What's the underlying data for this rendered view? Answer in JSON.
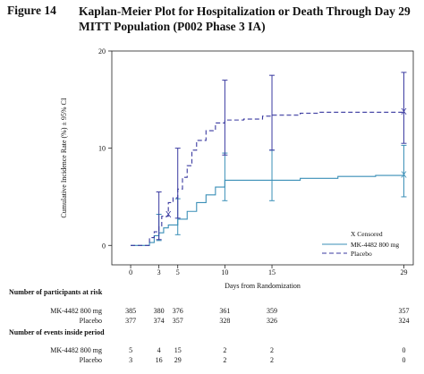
{
  "figure_label": "Figure 14",
  "figure_title": "Kaplan-Meier Plot for Hospitalization or Death Through Day 29 MITT Population (P002 Phase 3 IA)",
  "chart_data": {
    "type": "line",
    "subtype": "kaplan-meier step",
    "xlabel": "Days from Randomization",
    "ylabel": "Cumulative Incidence Rate (%) ± 95% CI",
    "xlim": [
      -2,
      30
    ],
    "ylim": [
      -2,
      20
    ],
    "x_ticks": [
      0,
      3,
      5,
      10,
      15,
      29
    ],
    "y_ticks": [
      0,
      10,
      20
    ],
    "grid": false,
    "legend_position": "bottom-right",
    "legend_title": "X Censored",
    "censor_symbol": "X",
    "colors": {
      "mk": "#3a8fb7",
      "placebo": "#3a3aa0"
    },
    "series": [
      {
        "name": "MK-4482 800 mg",
        "key": "mk",
        "line_style": "solid",
        "steps": [
          [
            0,
            0
          ],
          [
            2,
            0.3
          ],
          [
            2.5,
            1.0
          ],
          [
            3,
            1.3
          ],
          [
            3.5,
            1.8
          ],
          [
            4,
            2.1
          ],
          [
            5,
            2.7
          ],
          [
            6,
            3.5
          ],
          [
            7,
            4.4
          ],
          [
            8,
            5.2
          ],
          [
            9,
            6.0
          ],
          [
            10,
            6.7
          ],
          [
            15,
            6.7
          ],
          [
            18,
            6.9
          ],
          [
            22,
            7.1
          ],
          [
            26,
            7.2
          ],
          [
            29,
            7.3
          ]
        ],
        "ci": [
          {
            "x": 3,
            "low": 0.5,
            "high": 3.2
          },
          {
            "x": 5,
            "low": 1.1,
            "high": 4.8
          },
          {
            "x": 10,
            "low": 4.6,
            "high": 9.5
          },
          {
            "x": 15,
            "low": 4.6,
            "high": 9.8
          },
          {
            "x": 29,
            "low": 5.0,
            "high": 10.3
          }
        ],
        "censor": [
          {
            "x": 29,
            "y": 7.3
          }
        ]
      },
      {
        "name": "Placebo",
        "key": "placebo",
        "line_style": "dashed",
        "steps": [
          [
            0,
            0
          ],
          [
            2,
            0.8
          ],
          [
            2.5,
            1.4
          ],
          [
            3,
            2.0
          ],
          [
            3.3,
            3.0
          ],
          [
            4,
            4.4
          ],
          [
            4.5,
            4.9
          ],
          [
            5,
            5.8
          ],
          [
            5.5,
            7.0
          ],
          [
            6,
            8.2
          ],
          [
            6.5,
            9.8
          ],
          [
            7,
            10.8
          ],
          [
            8,
            11.8
          ],
          [
            9,
            12.6
          ],
          [
            10,
            12.9
          ],
          [
            12,
            13.0
          ],
          [
            14,
            13.3
          ],
          [
            15,
            13.4
          ],
          [
            18,
            13.6
          ],
          [
            20,
            13.7
          ],
          [
            29,
            13.8
          ]
        ],
        "ci": [
          {
            "x": 3,
            "low": 0.6,
            "high": 5.5
          },
          {
            "x": 5,
            "low": 2.8,
            "high": 10.0
          },
          {
            "x": 10,
            "low": 9.3,
            "high": 17.0
          },
          {
            "x": 15,
            "low": 9.8,
            "high": 17.5
          },
          {
            "x": 29,
            "low": 10.5,
            "high": 17.8
          }
        ],
        "censor": [
          {
            "x": 4,
            "y": 3.2
          },
          {
            "x": 29,
            "y": 13.8
          }
        ]
      }
    ]
  },
  "risk_table": {
    "participants_header": "Number of participants at risk",
    "events_header": "Number of events inside period",
    "participants": [
      {
        "label": "MK-4482 800 mg",
        "values": [
          "385",
          "380",
          "376",
          "361",
          "359",
          "357"
        ]
      },
      {
        "label": "Placebo",
        "values": [
          "377",
          "374",
          "357",
          "328",
          "326",
          "324"
        ]
      }
    ],
    "events": [
      {
        "label": "MK-4482 800 mg",
        "values": [
          "5",
          "4",
          "15",
          "2",
          "2",
          "0"
        ]
      },
      {
        "label": "Placebo",
        "values": [
          "3",
          "16",
          "29",
          "2",
          "2",
          "0"
        ]
      }
    ]
  }
}
